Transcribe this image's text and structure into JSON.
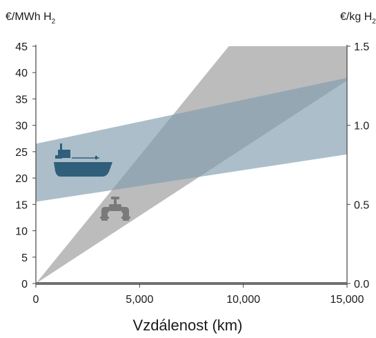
{
  "chart_data": {
    "type": "area",
    "xlabel": "Vzdálenost (km)",
    "y_left_unit": "€/MWh H",
    "y_left_unit_subscript": "2",
    "y_right_unit": "€/kg H",
    "y_right_unit_subscript": "2",
    "xlim": [
      0,
      15000
    ],
    "ylim_left": [
      0,
      45
    ],
    "ylim_right": [
      0,
      1.5
    ],
    "x_ticks": [
      0,
      5000,
      10000,
      15000
    ],
    "x_tick_labels": [
      "0",
      "5,000",
      "10,000",
      "15,000"
    ],
    "y_left_ticks": [
      0,
      5,
      10,
      15,
      20,
      25,
      30,
      35,
      40,
      45
    ],
    "y_left_tick_labels": [
      "0",
      "5",
      "10",
      "15",
      "20",
      "25",
      "30",
      "35",
      "40",
      "45"
    ],
    "y_right_ticks": [
      0.0,
      0.5,
      1.0,
      1.5
    ],
    "y_right_tick_labels": [
      "0.0",
      "0.5",
      "1.0",
      "1.5"
    ],
    "series": [
      {
        "icon": "pipeline-icon",
        "color": "#a6a6a6",
        "lower": [
          {
            "x": 0,
            "y": 0
          },
          {
            "x": 15000,
            "y": 38.5
          }
        ],
        "upper": [
          {
            "x": 0,
            "y": 0
          },
          {
            "x": 9300,
            "y": 45
          },
          {
            "x": 15000,
            "y": 45
          }
        ]
      },
      {
        "icon": "ship-icon",
        "color": "#7f9bae",
        "lower": [
          {
            "x": 0,
            "y": 15.5
          },
          {
            "x": 15000,
            "y": 24.5
          }
        ],
        "upper": [
          {
            "x": 0,
            "y": 26.5
          },
          {
            "x": 15000,
            "y": 39
          }
        ]
      }
    ],
    "grid": false,
    "legend": "none"
  }
}
